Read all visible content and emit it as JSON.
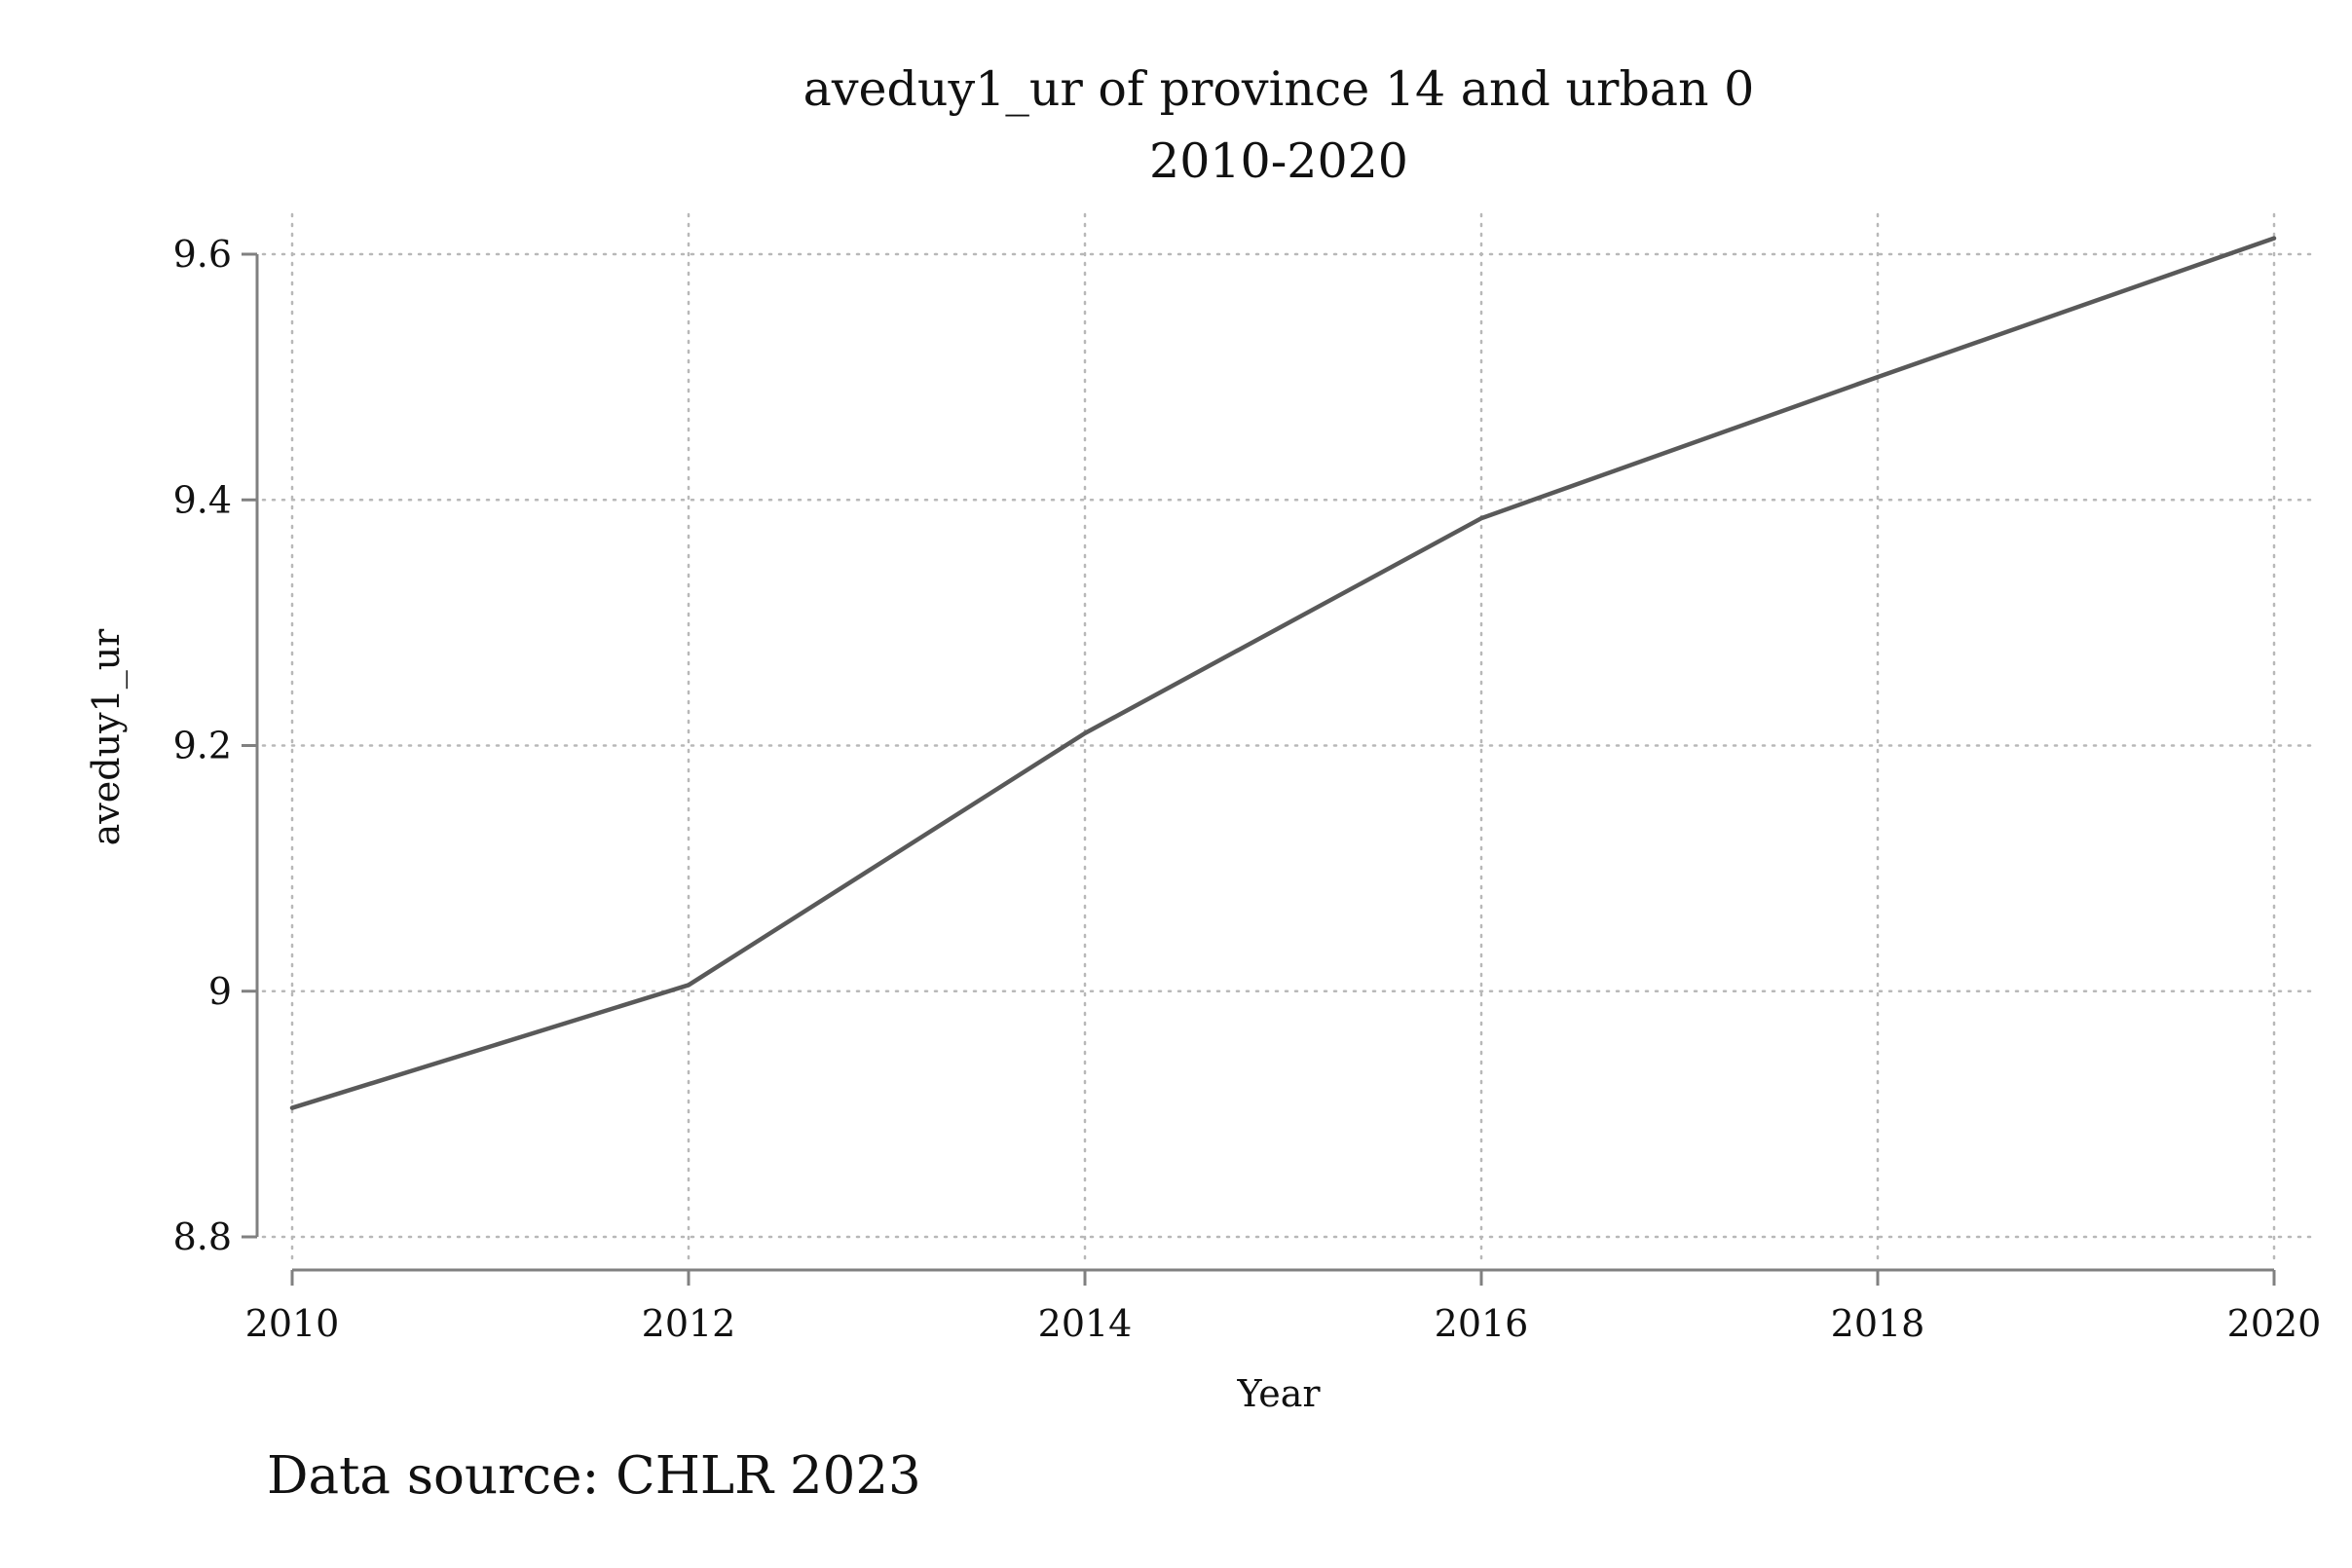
{
  "chart_data": {
    "type": "line",
    "title": "aveduy1_ur of province 14 and urban 0",
    "subtitle": "2010-2020",
    "xlabel": "Year",
    "ylabel": "aveduy1_ur",
    "x": [
      2010,
      2012,
      2014,
      2016,
      2018,
      2020
    ],
    "series": [
      {
        "values": [
          8.905,
          9.005,
          9.21,
          9.385,
          9.5,
          9.613
        ]
      }
    ],
    "xticks": [
      2010,
      2012,
      2014,
      2016,
      2018,
      2020
    ],
    "xtick_labels": [
      "2010",
      "2012",
      "2014",
      "2016",
      "2018",
      "2020"
    ],
    "yticks": [
      8.8,
      9,
      9.2,
      9.4,
      9.6
    ],
    "ytick_labels": [
      "8.8",
      "9",
      "9.2",
      "9.4",
      "9.6"
    ],
    "xlim": [
      2010,
      2020
    ],
    "ylim": [
      8.8,
      9.6
    ],
    "grid": true,
    "line_color": "#595959",
    "grid_color": "#b8b8b8",
    "axis_color": "#808080",
    "note": "Data source: CHLR 2023"
  }
}
